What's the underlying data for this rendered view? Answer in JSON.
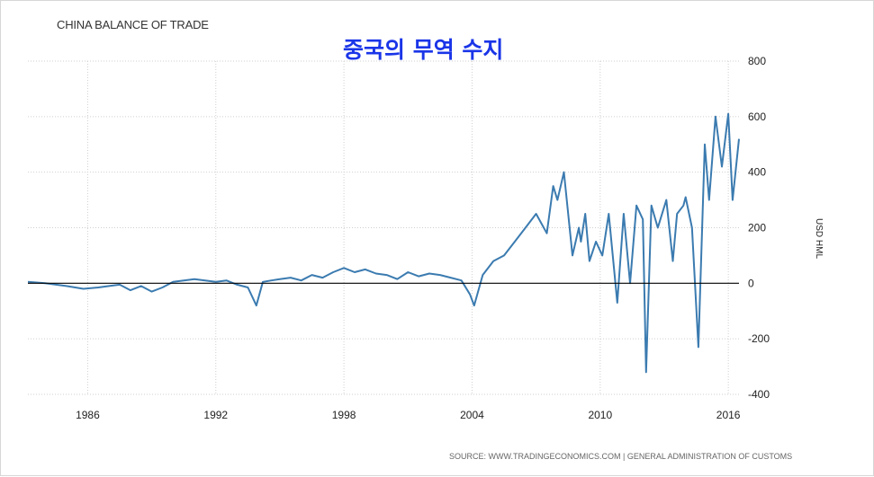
{
  "chart_data": {
    "type": "line",
    "title": "CHINA BALANCE OF TRADE",
    "overlay_title": "중국의 무역 수지",
    "ylabel": "USD HML",
    "source": "SOURCE: WWW.TRADINGECONOMICS.COM | GENERAL ADMINISTRATION OF CUSTOMS",
    "xlim": [
      1983.2,
      2016.5
    ],
    "ylim": [
      -400,
      800
    ],
    "x_ticks": [
      1986,
      1992,
      1998,
      2004,
      2010,
      2016
    ],
    "y_ticks": [
      800,
      600,
      400,
      200,
      0,
      -200,
      -400
    ],
    "grid": true,
    "reference_line": 0,
    "series": [
      {
        "color": "#3b7bb0",
        "x": [
          1983.2,
          1984.0,
          1985.0,
          1985.8,
          1986.5,
          1987.0,
          1987.5,
          1988.0,
          1988.5,
          1989.0,
          1989.5,
          1990.0,
          1990.5,
          1991.0,
          1992.0,
          1992.5,
          1993.0,
          1993.5,
          1993.9,
          1994.2,
          1994.6,
          1995.0,
          1995.5,
          1996.0,
          1996.5,
          1997.0,
          1997.5,
          1998.0,
          1998.5,
          1999.0,
          1999.5,
          2000.0,
          2000.5,
          2001.0,
          2001.5,
          2002.0,
          2002.5,
          2003.0,
          2003.5,
          2003.9,
          2004.1,
          2004.5,
          2005.0,
          2005.5,
          2006.0,
          2006.5,
          2007.0,
          2007.5,
          2007.8,
          2008.0,
          2008.3,
          2008.7,
          2009.0,
          2009.1,
          2009.3,
          2009.5,
          2009.8,
          2010.1,
          2010.4,
          2010.8,
          2011.1,
          2011.4,
          2011.7,
          2012.0,
          2012.15,
          2012.4,
          2012.7,
          2013.1,
          2013.4,
          2013.6,
          2013.9,
          2014.0,
          2014.3,
          2014.6,
          2014.9,
          2015.1,
          2015.4,
          2015.7,
          2016.0,
          2016.2,
          2016.5
        ],
        "values": [
          5,
          0,
          -10,
          -20,
          -15,
          -10,
          -5,
          -25,
          -10,
          -30,
          -15,
          5,
          10,
          15,
          5,
          10,
          -5,
          -15,
          -80,
          5,
          10,
          15,
          20,
          10,
          30,
          20,
          40,
          55,
          40,
          50,
          35,
          30,
          15,
          40,
          25,
          35,
          30,
          20,
          10,
          -40,
          -80,
          30,
          80,
          100,
          150,
          200,
          250,
          180,
          350,
          300,
          400,
          100,
          200,
          150,
          250,
          80,
          150,
          100,
          250,
          -70,
          250,
          0,
          280,
          230,
          -320,
          280,
          200,
          300,
          80,
          250,
          280,
          310,
          200,
          -230,
          500,
          300,
          600,
          420,
          610,
          300,
          520
        ]
      }
    ]
  }
}
